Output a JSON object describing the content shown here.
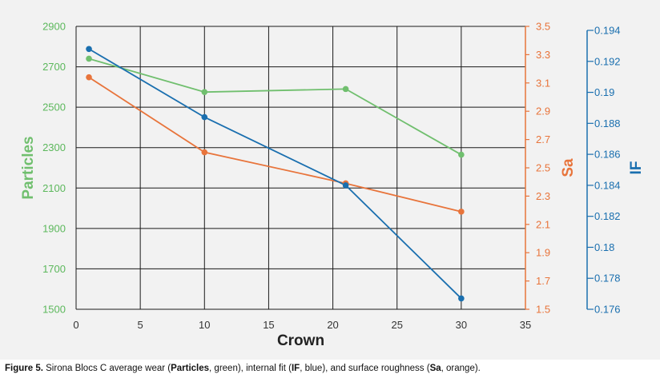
{
  "chart_data": {
    "type": "line",
    "xlabel": "Crown",
    "xlim": [
      0,
      35
    ],
    "xticks": [
      0,
      5,
      10,
      15,
      20,
      25,
      30,
      35
    ],
    "grid": true,
    "axes": {
      "particles": {
        "label": "Particles",
        "color": "#70bf6e",
        "lim": [
          1500,
          2900
        ],
        "ticks": [
          1500,
          1700,
          1900,
          2100,
          2300,
          2500,
          2700,
          2900
        ],
        "tick_labels": [
          "1500",
          "1700",
          "1900",
          "2100",
          "2300",
          "2500",
          "2700",
          "2900"
        ]
      },
      "sa": {
        "label": "Sa",
        "color": "#e8743b",
        "lim": [
          1.5,
          3.5
        ],
        "ticks": [
          1.5,
          1.7,
          1.9,
          2.1,
          2.3,
          2.5,
          2.7,
          2.9,
          3.1,
          3.3,
          3.5
        ],
        "tick_labels": [
          "1.5",
          "1.7",
          "1.9",
          "2.1",
          "2.3",
          "2.5",
          "2.7",
          "2.9",
          "3.1",
          "3.3",
          "3.5"
        ]
      },
      "if": {
        "label": "IF",
        "color": "#1a6faf",
        "lim": [
          0.176,
          0.194
        ],
        "ticks": [
          0.176,
          0.178,
          0.18,
          0.182,
          0.184,
          0.186,
          0.188,
          0.19,
          0.192,
          0.194
        ],
        "tick_labels": [
          "0.176",
          "0.178",
          "0.18",
          "0.182",
          "0.184",
          "0.186",
          "0.188",
          "0.19",
          "0.192",
          "0.194"
        ]
      }
    },
    "series": [
      {
        "name": "Particles",
        "axis": "particles",
        "color": "#70bf6e",
        "x": [
          1,
          10,
          21,
          30
        ],
        "y": [
          2740,
          2575,
          2590,
          2265
        ]
      },
      {
        "name": "Sa",
        "axis": "sa",
        "color": "#e8743b",
        "x": [
          1,
          10,
          21,
          30
        ],
        "y": [
          3.14,
          2.61,
          2.39,
          2.19
        ]
      },
      {
        "name": "IF",
        "axis": "if",
        "color": "#1a6faf",
        "x": [
          1,
          10,
          21,
          30
        ],
        "y": [
          0.1928,
          0.1884,
          0.184,
          0.1767
        ]
      }
    ]
  },
  "caption": {
    "prefix": "Figure 5.",
    "t1": " Sirona Blocs C average wear (",
    "b1": "Particles",
    "t2": ", green), internal fit (",
    "b2": "IF",
    "t3": ", blue), and surface roughness (",
    "b3": "Sa",
    "t4": ", orange)."
  }
}
